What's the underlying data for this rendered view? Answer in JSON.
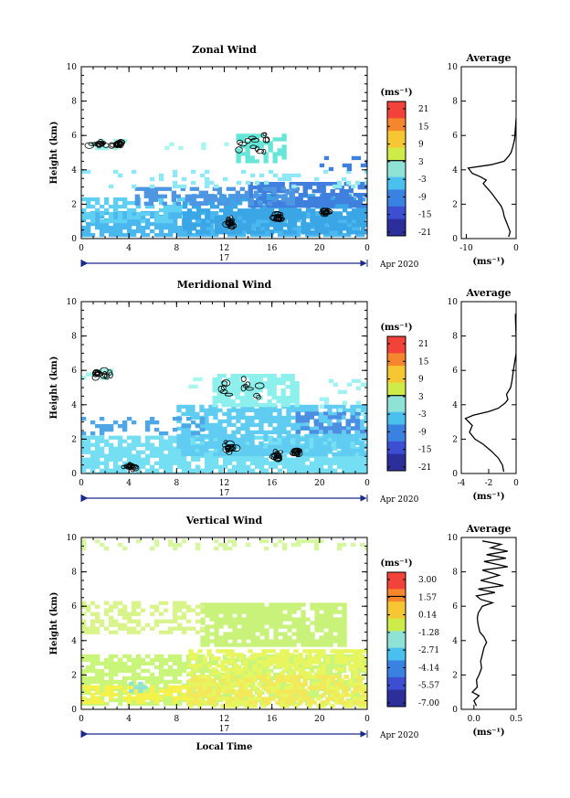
{
  "chart_data": [
    {
      "type": "heatmap",
      "title": "Zonal Wind",
      "xlabel": "",
      "ylabel": "Height (km)",
      "xticks": [
        "0",
        "4",
        "8",
        "12",
        "16",
        "20",
        "0"
      ],
      "yticks": [
        "0",
        "2",
        "4",
        "6",
        "8",
        "10"
      ],
      "xlim": [
        0,
        24
      ],
      "ylim": [
        0,
        10
      ],
      "date_day": "17",
      "date_month": "Apr 2020",
      "colorbar": {
        "unit": "(ms⁻¹)",
        "ticks": [
          "21",
          "15",
          "9",
          "3",
          "-3",
          "-9",
          "-15",
          "-21"
        ]
      },
      "blobs": [
        {
          "x0": 0.0,
          "x1": 24.0,
          "y0": 0.3,
          "y1": 1.6,
          "c": "#4ab8ee",
          "d": 0.8
        },
        {
          "x0": 0.0,
          "x1": 9.5,
          "y0": 1.0,
          "y1": 2.4,
          "c": "#5fd0f2",
          "d": 0.55
        },
        {
          "x0": 8.5,
          "x1": 24.0,
          "y0": 0.3,
          "y1": 2.6,
          "c": "#3aa6e6",
          "d": 0.7
        },
        {
          "x0": 14.0,
          "x1": 24.0,
          "y0": 2.0,
          "y1": 3.3,
          "c": "#3f7fdd",
          "d": 0.75
        },
        {
          "x0": 4.5,
          "x1": 18.0,
          "y0": 2.0,
          "y1": 3.0,
          "c": "#4f96e2",
          "d": 0.5
        },
        {
          "x0": 0.0,
          "x1": 24.0,
          "y0": 3.0,
          "y1": 4.0,
          "c": "#8ee8f5",
          "d": 0.15
        },
        {
          "x0": 13.0,
          "x1": 17.0,
          "y0": 4.5,
          "y1": 6.1,
          "c": "#66e6d8",
          "d": 0.55
        },
        {
          "x0": 0.0,
          "x1": 4.0,
          "y0": 5.2,
          "y1": 5.8,
          "c": "#9ff4ea",
          "d": 0.45
        },
        {
          "x0": 7.0,
          "x1": 12.0,
          "y0": 5.3,
          "y1": 5.6,
          "c": "#aaf6ee",
          "d": 0.2
        },
        {
          "x0": 20.0,
          "x1": 24.0,
          "y0": 4.0,
          "y1": 4.8,
          "c": "#3f7fdd",
          "d": 0.2
        }
      ],
      "contours": [
        [
          14.5,
          5.4,
          2.0,
          0.8
        ],
        [
          1.5,
          5.5,
          1.6,
          0.15
        ],
        [
          3.3,
          5.5,
          0.5,
          0.1
        ],
        [
          16.5,
          1.2,
          0.4,
          0.3
        ],
        [
          12.5,
          0.9,
          0.3,
          0.3
        ],
        [
          20.5,
          1.5,
          0.3,
          0.25
        ]
      ],
      "zeroline": 0.44
    },
    {
      "type": "heatmap",
      "title": "Meridional Wind",
      "xlabel": "",
      "ylabel": "Height (km)",
      "xticks": [
        "0",
        "4",
        "8",
        "12",
        "16",
        "20",
        "0"
      ],
      "yticks": [
        "0",
        "2",
        "4",
        "6",
        "8",
        "10"
      ],
      "xlim": [
        0,
        24
      ],
      "ylim": [
        0,
        10
      ],
      "date_day": "17",
      "date_month": "Apr 2020",
      "colorbar": {
        "unit": "(ms⁻¹)",
        "ticks": [
          "21",
          "15",
          "9",
          "3",
          "-3",
          "-9",
          "-15",
          "-21"
        ]
      },
      "blobs": [
        {
          "x0": 0.0,
          "x1": 24.0,
          "y0": 0.0,
          "y1": 2.2,
          "c": "#74def2",
          "d": 0.85
        },
        {
          "x0": 8.0,
          "x1": 24.0,
          "y0": 1.2,
          "y1": 4.0,
          "c": "#60ccf2",
          "d": 0.75
        },
        {
          "x0": 0.0,
          "x1": 10.0,
          "y0": 2.3,
          "y1": 3.3,
          "c": "#4fa6e6",
          "d": 0.35
        },
        {
          "x0": 18.0,
          "x1": 24.0,
          "y0": 2.5,
          "y1": 3.6,
          "c": "#4b8ee2",
          "d": 0.45
        },
        {
          "x0": 11.0,
          "x1": 18.0,
          "y0": 4.0,
          "y1": 5.8,
          "c": "#8ef0ec",
          "d": 0.8
        },
        {
          "x0": 0.0,
          "x1": 3.0,
          "y0": 5.5,
          "y1": 6.1,
          "c": "#9ff4ea",
          "d": 0.55
        },
        {
          "x0": 9.0,
          "x1": 12.0,
          "y0": 5.0,
          "y1": 5.6,
          "c": "#a8f6ee",
          "d": 0.3
        },
        {
          "x0": 20.0,
          "x1": 24.0,
          "y0": 3.5,
          "y1": 5.5,
          "c": "#a0f0f4",
          "d": 0.15
        }
      ],
      "contours": [
        [
          14.0,
          5.1,
          2.8,
          0.75
        ],
        [
          1.5,
          5.8,
          1.2,
          0.25
        ],
        [
          12.5,
          1.5,
          0.7,
          0.6
        ],
        [
          16.5,
          1.0,
          0.4,
          0.4
        ],
        [
          4.0,
          0.4,
          0.8,
          0.15
        ],
        [
          18.0,
          1.3,
          0.4,
          0.3
        ]
      ],
      "zeroline": 0.44
    },
    {
      "type": "heatmap",
      "title": "Vertical Wind",
      "xlabel": "Local Time",
      "ylabel": "Height (km)",
      "xticks": [
        "0",
        "4",
        "8",
        "12",
        "16",
        "20",
        "0"
      ],
      "yticks": [
        "0",
        "2",
        "4",
        "6",
        "8",
        "10"
      ],
      "xlim": [
        0,
        24
      ],
      "ylim": [
        0,
        10
      ],
      "date_day": "17",
      "date_month": "Apr 2020",
      "colorbar": {
        "unit": "(ms⁻¹)",
        "ticks": [
          "3.00",
          "1.57",
          "0.14",
          "-1.28",
          "-2.71",
          "-4.14",
          "-5.57",
          "-7.00"
        ]
      },
      "blobs": [
        {
          "x0": 0.0,
          "x1": 24.0,
          "y0": 0.3,
          "y1": 3.2,
          "c": "#c9f57a",
          "d": 0.75
        },
        {
          "x0": 9.0,
          "x1": 24.0,
          "y0": 0.3,
          "y1": 3.5,
          "c": "#e7f65e",
          "d": 0.55
        },
        {
          "x0": 0.0,
          "x1": 9.0,
          "y0": 0.4,
          "y1": 1.4,
          "c": "#f4f24a",
          "d": 0.55
        },
        {
          "x0": 9.0,
          "x1": 24.0,
          "y0": 0.5,
          "y1": 2.0,
          "c": "#f2e85a",
          "d": 0.45
        },
        {
          "x0": 10.0,
          "x1": 22.0,
          "y0": 3.8,
          "y1": 6.2,
          "c": "#c8f27a",
          "d": 0.8
        },
        {
          "x0": 0.0,
          "x1": 10.0,
          "y0": 4.4,
          "y1": 6.3,
          "c": "#d9f48a",
          "d": 0.45
        },
        {
          "x0": 0.0,
          "x1": 24.0,
          "y0": 9.3,
          "y1": 9.9,
          "c": "#d6f6a0",
          "d": 0.25
        },
        {
          "x0": 4.0,
          "x1": 5.5,
          "y0": 1.0,
          "y1": 1.6,
          "c": "#8ee4d0",
          "d": 0.5
        }
      ],
      "contours": [],
      "zeroline": 0.18
    }
  ],
  "profiles": [
    {
      "title": "Average",
      "xticks": [
        "-10",
        "0"
      ],
      "xlim": [
        -11,
        0
      ],
      "yticks": [
        "0",
        "2",
        "4",
        "6",
        "8",
        "10"
      ],
      "ylim": [
        0,
        10
      ],
      "unit": "(ms⁻¹)",
      "points": [
        [
          -1.5,
          0.1
        ],
        [
          -1.2,
          0.4
        ],
        [
          -1.6,
          0.7
        ],
        [
          -2.0,
          1.0
        ],
        [
          -2.4,
          1.3
        ],
        [
          -2.6,
          1.6
        ],
        [
          -3.0,
          1.9
        ],
        [
          -3.8,
          2.2
        ],
        [
          -4.8,
          2.6
        ],
        [
          -6.0,
          3.0
        ],
        [
          -6.6,
          3.2
        ],
        [
          -6.0,
          3.4
        ],
        [
          -7.2,
          3.6
        ],
        [
          -8.8,
          3.8
        ],
        [
          -9.6,
          4.1
        ],
        [
          -5.0,
          4.3
        ],
        [
          -2.4,
          4.5
        ],
        [
          -1.5,
          4.8
        ],
        [
          -1.0,
          5.0
        ],
        [
          -0.6,
          5.4
        ],
        [
          -0.3,
          5.8
        ],
        [
          -0.2,
          6.2
        ],
        [
          -0.1,
          6.6
        ],
        [
          0.0,
          7.0
        ]
      ]
    },
    {
      "title": "Average",
      "xticks": [
        "-4",
        "-2",
        "0"
      ],
      "xlim": [
        -4,
        0
      ],
      "yticks": [
        "0",
        "2",
        "4",
        "6",
        "8",
        "10"
      ],
      "ylim": [
        0,
        10
      ],
      "unit": "(ms⁻¹)",
      "points": [
        [
          -0.9,
          0.1
        ],
        [
          -1.0,
          0.5
        ],
        [
          -1.3,
          0.9
        ],
        [
          -1.8,
          1.3
        ],
        [
          -2.4,
          1.7
        ],
        [
          -3.0,
          2.0
        ],
        [
          -3.4,
          2.4
        ],
        [
          -3.2,
          2.8
        ],
        [
          -3.7,
          3.2
        ],
        [
          -3.1,
          3.4
        ],
        [
          -2.0,
          3.6
        ],
        [
          -1.3,
          3.8
        ],
        [
          -0.8,
          4.1
        ],
        [
          -0.6,
          4.3
        ],
        [
          -0.7,
          4.6
        ],
        [
          -0.4,
          5.0
        ],
        [
          -0.3,
          5.4
        ],
        [
          -0.2,
          6.0
        ],
        [
          -0.1,
          6.5
        ],
        [
          0.0,
          7.0
        ],
        [
          0.0,
          8.0
        ],
        [
          -0.05,
          9.0
        ],
        [
          -0.05,
          9.3
        ]
      ]
    },
    {
      "title": "Average",
      "xticks": [
        "0.0",
        "0.5"
      ],
      "xlim": [
        -0.15,
        0.5
      ],
      "yticks": [
        "0",
        "2",
        "4",
        "6",
        "8",
        "10"
      ],
      "ylim": [
        0,
        10
      ],
      "unit": "(ms⁻¹)",
      "points": [
        [
          0.03,
          0.2
        ],
        [
          0.0,
          0.5
        ],
        [
          0.06,
          0.8
        ],
        [
          -0.02,
          1.0
        ],
        [
          0.04,
          1.3
        ],
        [
          0.03,
          1.7
        ],
        [
          0.06,
          2.0
        ],
        [
          0.09,
          2.4
        ],
        [
          0.08,
          2.8
        ],
        [
          0.1,
          3.2
        ],
        [
          0.12,
          3.6
        ],
        [
          0.15,
          3.9
        ],
        [
          0.12,
          4.2
        ],
        [
          0.07,
          4.5
        ],
        [
          0.05,
          4.9
        ],
        [
          0.04,
          5.3
        ],
        [
          0.05,
          5.6
        ],
        [
          0.1,
          6.0
        ],
        [
          0.22,
          6.2
        ],
        [
          0.08,
          6.4
        ],
        [
          0.03,
          6.6
        ],
        [
          0.25,
          6.8
        ],
        [
          0.05,
          7.0
        ],
        [
          0.35,
          7.2
        ],
        [
          0.08,
          7.5
        ],
        [
          0.3,
          7.8
        ],
        [
          0.1,
          8.1
        ],
        [
          0.4,
          8.3
        ],
        [
          0.12,
          8.6
        ],
        [
          0.38,
          8.8
        ],
        [
          0.15,
          9.0
        ],
        [
          0.4,
          9.2
        ],
        [
          0.2,
          9.4
        ],
        [
          0.32,
          9.6
        ],
        [
          0.1,
          9.8
        ]
      ]
    }
  ],
  "colorbar_colors": [
    "#f2423a",
    "#f6862e",
    "#f7c733",
    "#cdec4a",
    "#8fe3d6",
    "#4ac0ee",
    "#3a82e2",
    "#3c4fd2",
    "#2c2f9a"
  ]
}
